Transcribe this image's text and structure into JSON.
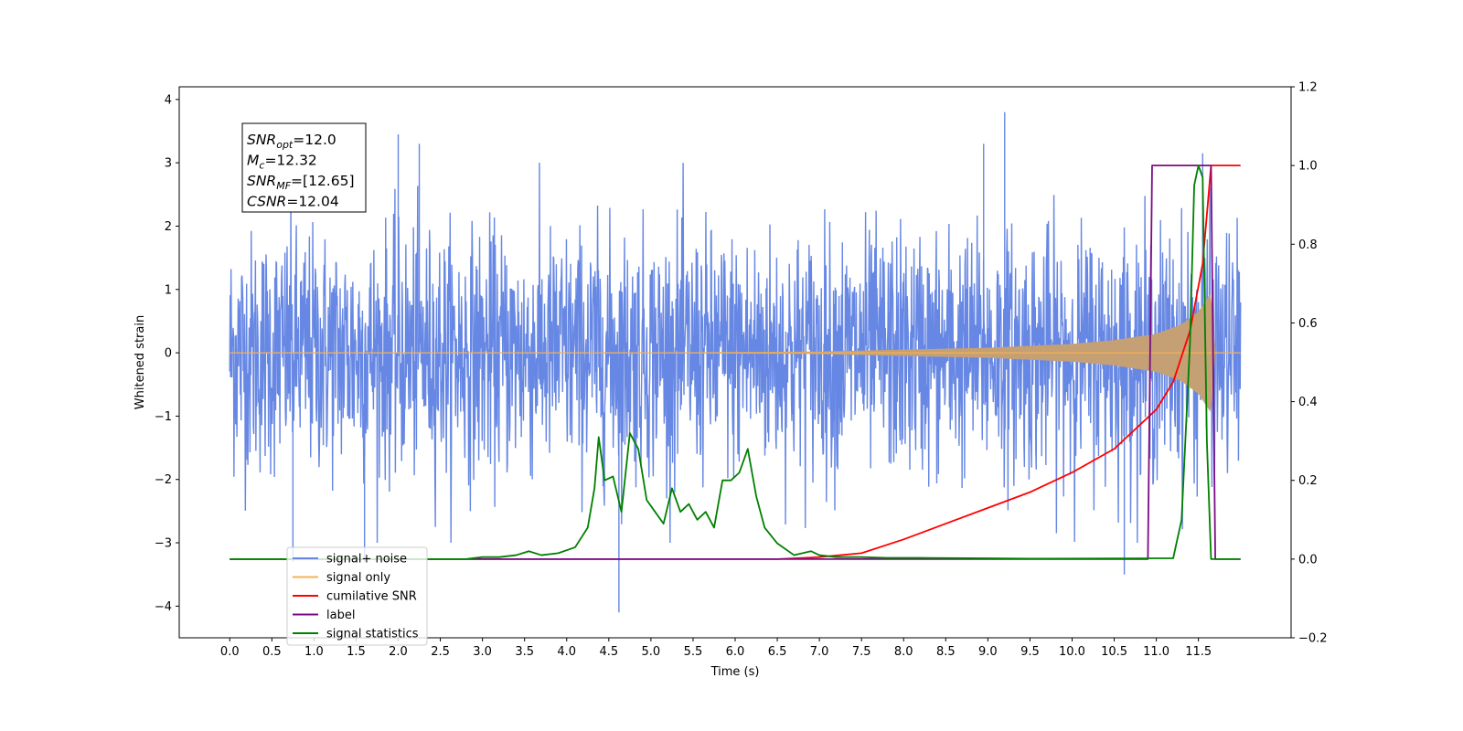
{
  "chart_data": {
    "type": "line",
    "xlabel": "Time (s)",
    "ylabel": "Whitened strain",
    "xlim": [
      -0.6,
      12.6
    ],
    "ylim": [
      -4.5,
      4.2
    ],
    "y2lim": [
      -0.2,
      1.2
    ],
    "x_ticks": [
      "0.0",
      "0.5",
      "1.0",
      "1.5",
      "2.0",
      "2.5",
      "3.0",
      "3.5",
      "4.0",
      "4.5",
      "5.0",
      "5.5",
      "6.0",
      "6.5",
      "7.0",
      "7.5",
      "8.0",
      "8.5",
      "9.0",
      "9.5",
      "10.0",
      "10.5",
      "11.0",
      "11.5"
    ],
    "y_ticks": [
      "−4",
      "−3",
      "−2",
      "−1",
      "0",
      "1",
      "2",
      "3",
      "4"
    ],
    "y2_ticks": [
      "−0.2",
      "0.0",
      "0.2",
      "0.4",
      "0.6",
      "0.8",
      "1.0",
      "1.2"
    ],
    "grid": false,
    "legend_position": "lower-left",
    "stats_box": {
      "lines": [
        {
          "main": "SNR",
          "sub": "opt",
          "rest": "=12.0"
        },
        {
          "main": "M",
          "sub": "c",
          "rest": "=12.32"
        },
        {
          "main": "SNR",
          "sub": "MF",
          "rest": "=[12.65]"
        },
        {
          "main": "CSNR",
          "sub": "",
          "rest": "=12.04"
        }
      ]
    },
    "series": [
      {
        "name": "signal+ noise",
        "color": "#6687e3",
        "axis": "left",
        "kind": "noise",
        "sigma": 1.0,
        "x_range": [
          0.0,
          12.0
        ],
        "peaks": [
          [
            2.0,
            3.45
          ],
          [
            2.25,
            3.3
          ],
          [
            9.2,
            3.8
          ],
          [
            8.95,
            3.3
          ],
          [
            11.55,
            3.15
          ],
          [
            4.62,
            -4.1
          ],
          [
            10.62,
            -3.5
          ],
          [
            1.6,
            -3.3
          ],
          [
            0.75,
            -3.3
          ]
        ]
      },
      {
        "name": "signal only",
        "color": "#f5b155",
        "fill_color": "#c4a074",
        "axis": "left",
        "kind": "chirp",
        "x_range": [
          0.0,
          12.0
        ],
        "envelope": [
          [
            0.0,
            0.0
          ],
          [
            5.0,
            0.005
          ],
          [
            7.0,
            0.02
          ],
          [
            8.0,
            0.05
          ],
          [
            9.0,
            0.08
          ],
          [
            10.0,
            0.14
          ],
          [
            10.5,
            0.2
          ],
          [
            11.0,
            0.3
          ],
          [
            11.3,
            0.45
          ],
          [
            11.5,
            0.65
          ],
          [
            11.65,
            0.95
          ],
          [
            11.7,
            0.0
          ],
          [
            12.0,
            0.0
          ]
        ]
      },
      {
        "name": "cumilative SNR",
        "color": "#ff0000",
        "axis": "right",
        "x": [
          0.0,
          6.5,
          7.0,
          7.5,
          8.0,
          8.5,
          9.0,
          9.5,
          10.0,
          10.5,
          11.0,
          11.2,
          11.4,
          11.55,
          11.65,
          12.0
        ],
        "y": [
          0.0,
          0.0,
          0.005,
          0.015,
          0.05,
          0.09,
          0.13,
          0.17,
          0.22,
          0.28,
          0.38,
          0.45,
          0.58,
          0.75,
          1.0,
          1.0
        ]
      },
      {
        "name": "label",
        "color": "#7b0d84",
        "axis": "right",
        "x": [
          0.0,
          10.9,
          10.95,
          11.65,
          11.7,
          12.0
        ],
        "y": [
          0.0,
          0.0,
          1.0,
          1.0,
          0.0,
          0.0
        ]
      },
      {
        "name": "signal statistics",
        "color": "#008000",
        "axis": "right",
        "x": [
          0.0,
          2.8,
          3.0,
          3.2,
          3.4,
          3.55,
          3.7,
          3.9,
          4.1,
          4.25,
          4.33,
          4.38,
          4.45,
          4.55,
          4.65,
          4.75,
          4.85,
          4.95,
          5.05,
          5.15,
          5.25,
          5.35,
          5.45,
          5.55,
          5.65,
          5.75,
          5.85,
          5.95,
          6.05,
          6.15,
          6.25,
          6.35,
          6.5,
          6.7,
          6.9,
          7.0,
          7.2,
          7.5,
          7.8,
          8.2,
          9.0,
          9.5,
          11.2,
          11.3,
          11.4,
          11.45,
          11.5,
          11.55,
          11.6,
          11.65,
          12.0
        ],
        "y": [
          0.0,
          0.0,
          0.005,
          0.005,
          0.01,
          0.02,
          0.01,
          0.015,
          0.03,
          0.08,
          0.18,
          0.31,
          0.2,
          0.21,
          0.12,
          0.32,
          0.28,
          0.15,
          0.12,
          0.09,
          0.18,
          0.12,
          0.14,
          0.1,
          0.12,
          0.08,
          0.2,
          0.2,
          0.22,
          0.28,
          0.16,
          0.08,
          0.04,
          0.01,
          0.02,
          0.01,
          0.005,
          0.005,
          0.003,
          0.003,
          0.002,
          0.001,
          0.002,
          0.1,
          0.55,
          0.95,
          1.0,
          0.97,
          0.3,
          0.0,
          0.0
        ]
      }
    ]
  }
}
